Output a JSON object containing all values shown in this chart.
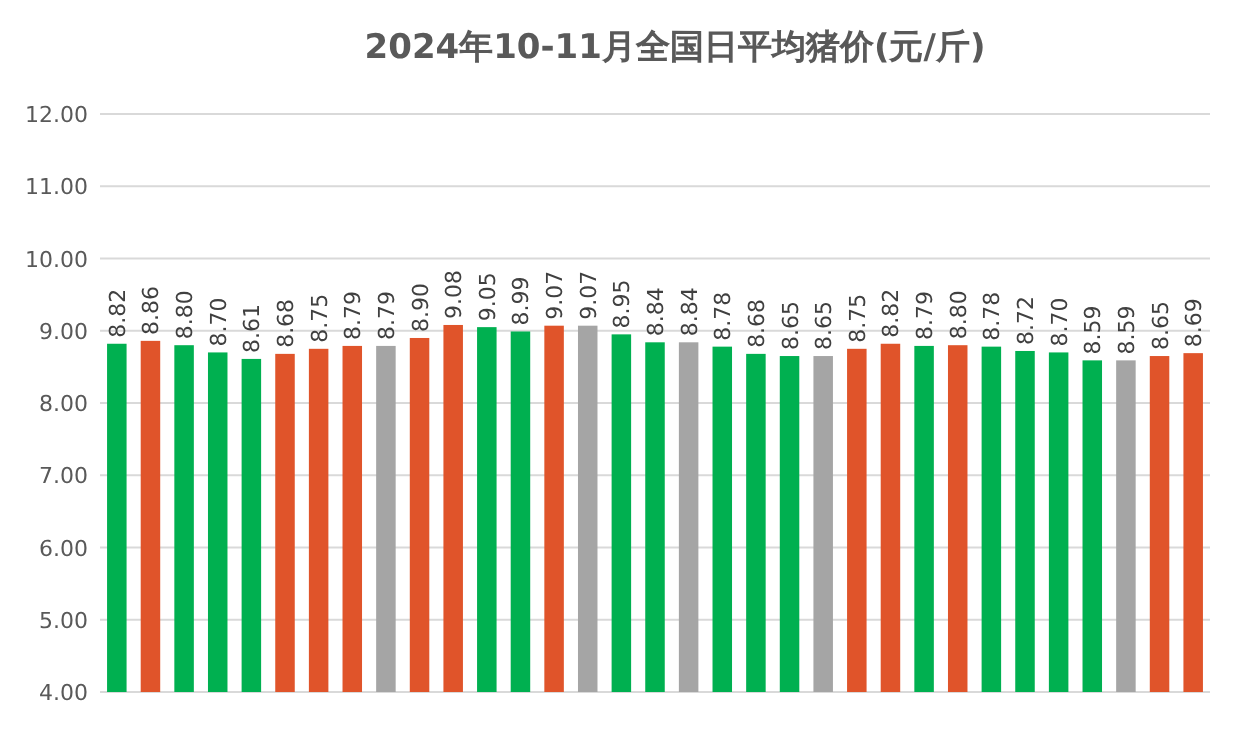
{
  "chart_data": {
    "type": "bar",
    "title": "2024年10-11月全国日平均猪价(元/斤)",
    "categories": [
      null,
      null,
      null,
      null,
      null,
      null,
      null,
      null,
      null,
      null,
      null,
      null,
      null,
      null,
      null,
      null,
      null,
      null,
      null,
      null,
      null,
      null,
      null,
      null,
      null,
      null,
      null,
      null,
      null,
      null,
      null,
      null,
      null
    ],
    "values": [
      8.82,
      8.86,
      8.8,
      8.7,
      8.61,
      8.68,
      8.75,
      8.79,
      8.79,
      8.9,
      9.08,
      9.05,
      8.99,
      9.07,
      9.07,
      8.95,
      8.84,
      8.84,
      8.78,
      8.68,
      8.65,
      8.65,
      8.75,
      8.82,
      8.79,
      8.8,
      8.78,
      8.72,
      8.7,
      8.59,
      8.59,
      8.65,
      8.69
    ],
    "value_labels": [
      "8.82",
      "8.86",
      "8.80",
      "8.70",
      "8.61",
      "8.68",
      "8.75",
      "8.79",
      "8.79",
      "8.90",
      "9.08",
      "9.05",
      "8.99",
      "9.07",
      "9.07",
      "8.95",
      "8.84",
      "8.84",
      "8.78",
      "8.68",
      "8.65",
      "8.65",
      "8.75",
      "8.82",
      "8.79",
      "8.80",
      "8.78",
      "8.72",
      "8.70",
      "8.59",
      "8.59",
      "8.65",
      "8.69"
    ],
    "colors": [
      "#00b050",
      "#e0542a",
      "#00b050",
      "#00b050",
      "#00b050",
      "#e0542a",
      "#e0542a",
      "#e0542a",
      "#a5a5a5",
      "#e0542a",
      "#e0542a",
      "#00b050",
      "#00b050",
      "#e0542a",
      "#a5a5a5",
      "#00b050",
      "#00b050",
      "#a5a5a5",
      "#00b050",
      "#00b050",
      "#00b050",
      "#a5a5a5",
      "#e0542a",
      "#e0542a",
      "#00b050",
      "#e0542a",
      "#00b050",
      "#00b050",
      "#00b050",
      "#00b050",
      "#a5a5a5",
      "#e0542a",
      "#e0542a"
    ],
    "ylim": [
      4,
      12
    ],
    "yticks": [
      {
        "value": 4,
        "label": "4.00"
      },
      {
        "value": 5,
        "label": "5.00"
      },
      {
        "value": 6,
        "label": "6.00"
      },
      {
        "value": 7,
        "label": "7.00"
      },
      {
        "value": 8,
        "label": "8.00"
      },
      {
        "value": 9,
        "label": "9.00"
      },
      {
        "value": 10,
        "label": "10.00"
      },
      {
        "value": 11,
        "label": "11.00"
      },
      {
        "value": 12,
        "label": "12.00"
      }
    ],
    "grid": "y"
  }
}
